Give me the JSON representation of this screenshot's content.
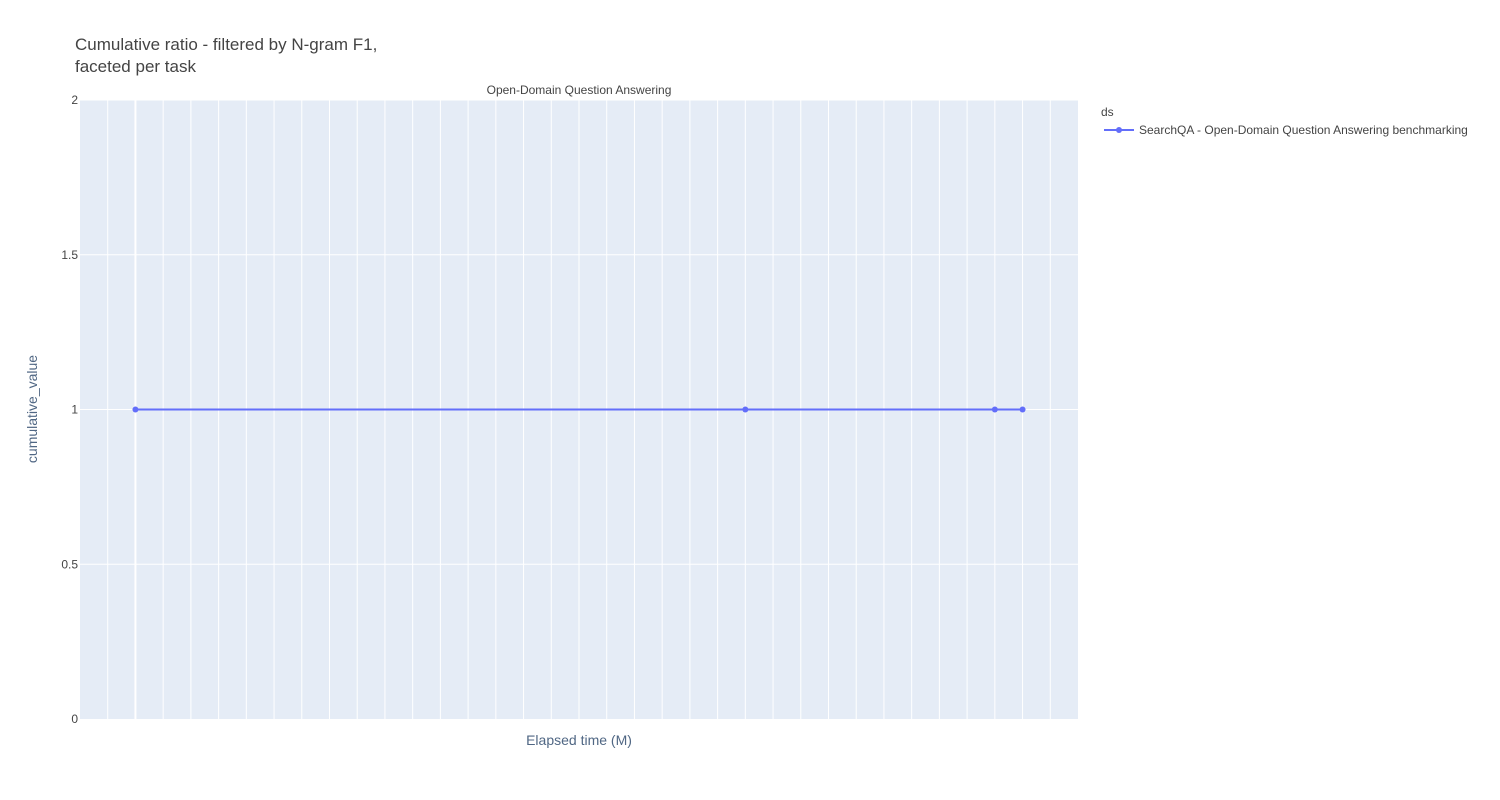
{
  "colors": {
    "plot_background": "#E5ECF6",
    "gridline": "#ffffff",
    "series_line": "#636EFA",
    "text": "#444444",
    "axis_title": "#506784"
  },
  "chart_data": {
    "type": "line",
    "title_line1": "Cumulative ratio - filtered by N-gram F1,",
    "title_line2": "faceted per task",
    "facet_label": "Open-Domain Question Answering",
    "xlabel": "Elapsed time (M)",
    "ylabel": "cumulative_value",
    "ylim": [
      0,
      2
    ],
    "yticks": [
      "0",
      "0.5",
      "1",
      "1.5",
      "2"
    ],
    "ytick_values": [
      0,
      0.5,
      1,
      1.5,
      2
    ],
    "xlim": [
      0,
      36
    ],
    "x_minor_grid_step": 1,
    "grid": true,
    "legend": {
      "title": "ds",
      "placement": "top-right"
    },
    "series": [
      {
        "name": "SearchQA - Open-Domain Question Answering benchmarking",
        "x": [
          2,
          24,
          33,
          34
        ],
        "y": [
          1,
          1,
          1,
          1
        ]
      }
    ]
  }
}
